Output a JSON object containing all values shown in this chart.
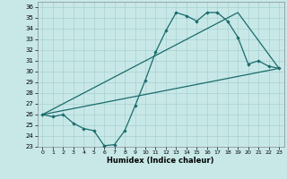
{
  "xlabel": "Humidex (Indice chaleur)",
  "bg_color": "#c8e8e8",
  "grid_color": "#a8d0d0",
  "line_color": "#1a6b6b",
  "xlim": [
    -0.5,
    23.5
  ],
  "ylim": [
    23,
    36.5
  ],
  "yticks": [
    23,
    24,
    25,
    26,
    27,
    28,
    29,
    30,
    31,
    32,
    33,
    34,
    35,
    36
  ],
  "xticks": [
    0,
    1,
    2,
    3,
    4,
    5,
    6,
    7,
    8,
    9,
    10,
    11,
    12,
    13,
    14,
    15,
    16,
    17,
    18,
    19,
    20,
    21,
    22,
    23
  ],
  "line1_x": [
    0,
    1,
    2,
    3,
    4,
    5,
    6,
    7,
    8,
    9,
    10,
    11,
    12,
    13,
    14,
    15,
    16,
    17,
    18,
    19,
    20,
    21,
    22,
    23
  ],
  "line1_y": [
    26.0,
    25.8,
    26.0,
    25.2,
    24.7,
    24.5,
    23.1,
    23.2,
    24.5,
    26.8,
    29.2,
    31.8,
    33.8,
    35.5,
    35.2,
    34.7,
    35.5,
    35.5,
    34.7,
    33.2,
    30.7,
    31.0,
    30.5,
    30.3
  ],
  "line2_x": [
    0,
    23
  ],
  "line2_y": [
    26.0,
    30.3
  ],
  "line3_x": [
    0,
    19,
    23
  ],
  "line3_y": [
    26.0,
    35.5,
    30.3
  ]
}
